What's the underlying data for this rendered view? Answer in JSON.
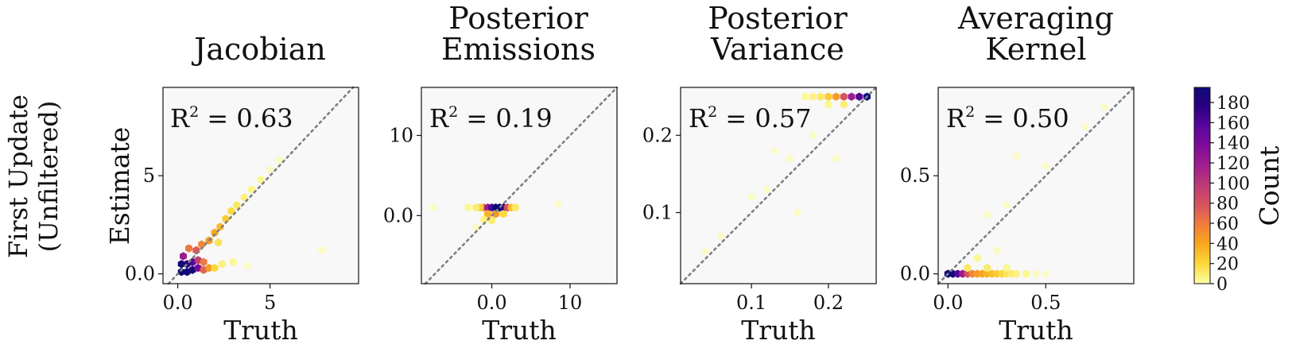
{
  "figure": {
    "row_label_lines": [
      "First Update",
      "(Unfiltered)"
    ],
    "colorbar": {
      "label": "Count",
      "min": 0,
      "max": 195,
      "ticks": [
        0,
        20,
        40,
        60,
        80,
        100,
        120,
        140,
        160,
        180
      ],
      "colormap": "plasma_r",
      "colors": [
        "#fcffa4",
        "#fbd93d",
        "#f9a81d",
        "#f07d3d",
        "#d8545e",
        "#bc3b76",
        "#a11f8e",
        "#7f0b98",
        "#5b069f",
        "#2a007f",
        "#0e0a78"
      ]
    }
  },
  "chart_data": [
    {
      "type": "hexbin",
      "title_lines": [
        "Jacobian"
      ],
      "xlabel": "Truth",
      "ylabel": "Estimate",
      "xlim": [
        -0.8,
        9.8
      ],
      "ylim": [
        -0.5,
        9.5
      ],
      "xticks": [
        0,
        5
      ],
      "yticks": [
        0,
        5
      ],
      "r2_label": "R",
      "r2_value": "0.63",
      "diagonal": true,
      "hex_bins": [
        {
          "x": 0.2,
          "y": 0.1,
          "count": 195
        },
        {
          "x": 0.5,
          "y": 0.1,
          "count": 195
        },
        {
          "x": 0.8,
          "y": 0.2,
          "count": 190
        },
        {
          "x": 0.2,
          "y": 0.5,
          "count": 195
        },
        {
          "x": 0.5,
          "y": 0.5,
          "count": 180
        },
        {
          "x": 0.8,
          "y": 0.6,
          "count": 160
        },
        {
          "x": 0.3,
          "y": 0.9,
          "count": 120
        },
        {
          "x": 1.1,
          "y": 0.3,
          "count": 140
        },
        {
          "x": 1.1,
          "y": 0.7,
          "count": 95
        },
        {
          "x": 1.4,
          "y": 0.2,
          "count": 70
        },
        {
          "x": 1.4,
          "y": 0.6,
          "count": 60
        },
        {
          "x": 1.7,
          "y": 0.3,
          "count": 45
        },
        {
          "x": 0.6,
          "y": 1.3,
          "count": 60
        },
        {
          "x": 1.0,
          "y": 1.2,
          "count": 75
        },
        {
          "x": 1.3,
          "y": 1.5,
          "count": 55
        },
        {
          "x": 1.7,
          "y": 1.7,
          "count": 45
        },
        {
          "x": 2.0,
          "y": 2.1,
          "count": 40
        },
        {
          "x": 2.3,
          "y": 2.4,
          "count": 32
        },
        {
          "x": 2.6,
          "y": 2.8,
          "count": 25
        },
        {
          "x": 2.9,
          "y": 3.2,
          "count": 18
        },
        {
          "x": 3.2,
          "y": 3.5,
          "count": 12
        },
        {
          "x": 3.6,
          "y": 3.9,
          "count": 8
        },
        {
          "x": 4.0,
          "y": 4.3,
          "count": 5
        },
        {
          "x": 4.5,
          "y": 4.8,
          "count": 3
        },
        {
          "x": 5.0,
          "y": 5.3,
          "count": 2
        },
        {
          "x": 5.5,
          "y": 5.8,
          "count": 1
        },
        {
          "x": 2.0,
          "y": 0.3,
          "count": 20
        },
        {
          "x": 2.4,
          "y": 0.5,
          "count": 8
        },
        {
          "x": 3.0,
          "y": 0.6,
          "count": 3
        },
        {
          "x": 3.8,
          "y": 0.4,
          "count": 1
        },
        {
          "x": 7.8,
          "y": 1.2,
          "count": 1
        },
        {
          "x": 2.2,
          "y": 1.6,
          "count": 15
        }
      ]
    },
    {
      "type": "hexbin",
      "title_lines": [
        "Posterior",
        "Emissions"
      ],
      "xlabel": "Truth",
      "ylabel": "",
      "xlim": [
        -9,
        16
      ],
      "ylim": [
        -8.5,
        16
      ],
      "xticks": [
        0,
        10
      ],
      "yticks": [
        0,
        10
      ],
      "r2_label": "R",
      "r2_value": "0.19",
      "diagonal": true,
      "hex_bins": [
        {
          "x": -1.0,
          "y": 1.0,
          "count": 60
        },
        {
          "x": -0.5,
          "y": 1.0,
          "count": 120
        },
        {
          "x": 0.0,
          "y": 1.0,
          "count": 160
        },
        {
          "x": 0.5,
          "y": 1.0,
          "count": 195
        },
        {
          "x": 1.0,
          "y": 1.0,
          "count": 195
        },
        {
          "x": 1.5,
          "y": 1.0,
          "count": 180
        },
        {
          "x": 2.0,
          "y": 1.0,
          "count": 80
        },
        {
          "x": 2.5,
          "y": 1.0,
          "count": 30
        },
        {
          "x": 3.0,
          "y": 1.0,
          "count": 12
        },
        {
          "x": -1.5,
          "y": 1.0,
          "count": 25
        },
        {
          "x": -2.0,
          "y": 1.0,
          "count": 10
        },
        {
          "x": -3.0,
          "y": 1.0,
          "count": 3
        },
        {
          "x": -0.5,
          "y": 0.2,
          "count": 35
        },
        {
          "x": 0.5,
          "y": 0.2,
          "count": 45
        },
        {
          "x": 1.5,
          "y": 0.2,
          "count": 20
        },
        {
          "x": -1.0,
          "y": -0.5,
          "count": 6
        },
        {
          "x": 0.0,
          "y": -0.6,
          "count": 10
        },
        {
          "x": -2.0,
          "y": -1.5,
          "count": 2
        },
        {
          "x": -7.5,
          "y": 1.0,
          "count": 1
        },
        {
          "x": 8.5,
          "y": 1.5,
          "count": 1
        }
      ]
    },
    {
      "type": "hexbin",
      "title_lines": [
        "Posterior",
        "Variance"
      ],
      "xlabel": "Truth",
      "ylabel": "",
      "xlim": [
        0.008,
        0.262
      ],
      "ylim": [
        0.008,
        0.262
      ],
      "xticks": [
        0.1,
        0.2
      ],
      "yticks": [
        0.1,
        0.2
      ],
      "r2_label": "R",
      "r2_value": "0.57",
      "diagonal": true,
      "hex_bins": [
        {
          "x": 0.25,
          "y": 0.25,
          "count": 195
        },
        {
          "x": 0.24,
          "y": 0.25,
          "count": 160
        },
        {
          "x": 0.23,
          "y": 0.25,
          "count": 120
        },
        {
          "x": 0.22,
          "y": 0.25,
          "count": 80
        },
        {
          "x": 0.21,
          "y": 0.25,
          "count": 45
        },
        {
          "x": 0.2,
          "y": 0.25,
          "count": 25
        },
        {
          "x": 0.19,
          "y": 0.25,
          "count": 12
        },
        {
          "x": 0.18,
          "y": 0.25,
          "count": 6
        },
        {
          "x": 0.17,
          "y": 0.25,
          "count": 3
        },
        {
          "x": 0.2,
          "y": 0.24,
          "count": 4
        },
        {
          "x": 0.22,
          "y": 0.24,
          "count": 8
        },
        {
          "x": 0.18,
          "y": 0.2,
          "count": 2
        },
        {
          "x": 0.15,
          "y": 0.17,
          "count": 2
        },
        {
          "x": 0.12,
          "y": 0.13,
          "count": 1
        },
        {
          "x": 0.1,
          "y": 0.12,
          "count": 1
        },
        {
          "x": 0.06,
          "y": 0.07,
          "count": 1
        },
        {
          "x": 0.04,
          "y": 0.05,
          "count": 1
        },
        {
          "x": 0.21,
          "y": 0.17,
          "count": 1
        },
        {
          "x": 0.16,
          "y": 0.1,
          "count": 1
        },
        {
          "x": 0.13,
          "y": 0.18,
          "count": 1
        }
      ]
    },
    {
      "type": "hexbin",
      "title_lines": [
        "Averaging",
        "Kernel"
      ],
      "xlabel": "Truth",
      "ylabel": "",
      "xlim": [
        -0.05,
        0.95
      ],
      "ylim": [
        -0.05,
        0.95
      ],
      "xticks": [
        0.0,
        0.5
      ],
      "yticks": [
        0.0,
        0.5
      ],
      "r2_label": "R",
      "r2_value": "0.50",
      "diagonal": true,
      "hex_bins": [
        {
          "x": 0.0,
          "y": 0.0,
          "count": 195
        },
        {
          "x": 0.025,
          "y": 0.0,
          "count": 195
        },
        {
          "x": 0.05,
          "y": 0.0,
          "count": 160
        },
        {
          "x": 0.075,
          "y": 0.0,
          "count": 120
        },
        {
          "x": 0.1,
          "y": 0.0,
          "count": 80
        },
        {
          "x": 0.125,
          "y": 0.0,
          "count": 55
        },
        {
          "x": 0.15,
          "y": 0.0,
          "count": 45
        },
        {
          "x": 0.175,
          "y": 0.0,
          "count": 40
        },
        {
          "x": 0.2,
          "y": 0.0,
          "count": 35
        },
        {
          "x": 0.225,
          "y": 0.0,
          "count": 30
        },
        {
          "x": 0.25,
          "y": 0.0,
          "count": 25
        },
        {
          "x": 0.275,
          "y": 0.0,
          "count": 20
        },
        {
          "x": 0.3,
          "y": 0.0,
          "count": 14
        },
        {
          "x": 0.325,
          "y": 0.0,
          "count": 10
        },
        {
          "x": 0.35,
          "y": 0.0,
          "count": 7
        },
        {
          "x": 0.4,
          "y": 0.0,
          "count": 4
        },
        {
          "x": 0.45,
          "y": 0.0,
          "count": 2
        },
        {
          "x": 0.5,
          "y": 0.0,
          "count": 1
        },
        {
          "x": 0.1,
          "y": 0.03,
          "count": 12
        },
        {
          "x": 0.2,
          "y": 0.03,
          "count": 10
        },
        {
          "x": 0.3,
          "y": 0.03,
          "count": 4
        },
        {
          "x": 0.15,
          "y": 0.08,
          "count": 3
        },
        {
          "x": 0.25,
          "y": 0.12,
          "count": 2
        },
        {
          "x": 0.2,
          "y": 0.3,
          "count": 1
        },
        {
          "x": 0.3,
          "y": 0.35,
          "count": 1
        },
        {
          "x": 0.5,
          "y": 0.55,
          "count": 1
        },
        {
          "x": 0.7,
          "y": 0.75,
          "count": 1
        },
        {
          "x": 0.8,
          "y": 0.85,
          "count": 1
        },
        {
          "x": 0.35,
          "y": 0.6,
          "count": 1
        }
      ]
    }
  ]
}
